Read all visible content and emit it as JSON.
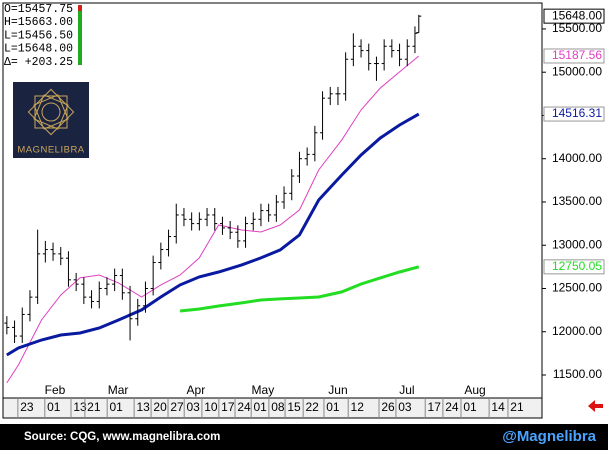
{
  "chart_data": {
    "type": "ohlc",
    "info_lines": [
      "O=15457.75",
      "H=15663.00",
      "L=15456.50",
      "L=15648.00",
      "Δ=  +203.25"
    ],
    "logo_text": "MAGNELIBRA",
    "source": "Source: CQG, www.magnelibra.com",
    "handle": "@Magnelibra",
    "bar_color": "#000000",
    "xlim": [
      0,
      140
    ],
    "ylim": [
      11234,
      15800
    ],
    "yticks": [
      {
        "value": 11500,
        "label": "11500.00"
      },
      {
        "value": 12000,
        "label": "12000.00"
      },
      {
        "value": 12500,
        "label": "12500.00"
      },
      {
        "value": 13000,
        "label": "13000.00"
      },
      {
        "value": 13500,
        "label": "13500.00"
      },
      {
        "value": 14000,
        "label": "14000.00"
      },
      {
        "value": 14500,
        "label": "14500.00"
      },
      {
        "value": 15000,
        "label": "15000.00"
      },
      {
        "value": 15500,
        "label": "15500.00"
      }
    ],
    "xticks": [
      {
        "value": 6.2,
        "label": "23"
      },
      {
        "value": 13.2,
        "label": "01"
      },
      {
        "value": 20,
        "label": "13"
      },
      {
        "value": 23.6,
        "label": "21"
      },
      {
        "value": 29.4,
        "label": "01"
      },
      {
        "value": 36.4,
        "label": "13"
      },
      {
        "value": 40.8,
        "label": "20"
      },
      {
        "value": 45.2,
        "label": "27"
      },
      {
        "value": 49.4,
        "label": "03"
      },
      {
        "value": 54,
        "label": "10"
      },
      {
        "value": 58.4,
        "label": "17"
      },
      {
        "value": 62.6,
        "label": "24"
      },
      {
        "value": 66.8,
        "label": "01"
      },
      {
        "value": 71.4,
        "label": "08"
      },
      {
        "value": 75.6,
        "label": "15"
      },
      {
        "value": 80.3,
        "label": "22"
      },
      {
        "value": 85.7,
        "label": "01"
      },
      {
        "value": 92,
        "label": "12"
      },
      {
        "value": 100,
        "label": "26"
      },
      {
        "value": 104.4,
        "label": "03"
      },
      {
        "value": 112,
        "label": "17"
      },
      {
        "value": 116.6,
        "label": "24"
      },
      {
        "value": 121.3,
        "label": "01"
      },
      {
        "value": 128.6,
        "label": "14"
      },
      {
        "value": 133.5,
        "label": "21"
      }
    ],
    "month_labels": [
      {
        "value": 13.5,
        "label": "Feb"
      },
      {
        "value": 29.9,
        "label": "Mar"
      },
      {
        "value": 50.1,
        "label": "Apr"
      },
      {
        "value": 67.5,
        "label": "May"
      },
      {
        "value": 87,
        "label": "Jun"
      },
      {
        "value": 104.9,
        "label": "Jul"
      },
      {
        "value": 122.6,
        "label": "Aug"
      }
    ],
    "x": [
      1,
      3,
      5,
      7,
      9,
      11,
      13,
      15,
      17,
      19,
      21,
      23,
      25,
      27,
      29,
      31,
      33,
      35,
      37,
      39,
      41,
      43,
      45,
      47,
      49,
      51,
      53,
      55,
      57,
      59,
      61,
      63,
      65,
      67,
      69,
      71,
      73,
      75,
      77,
      79,
      81,
      83,
      85,
      87,
      89,
      91,
      93,
      95,
      97,
      99,
      101,
      103,
      105,
      107,
      108
    ],
    "open": [
      12100,
      12050,
      11950,
      12200,
      12400,
      12900,
      12950,
      12900,
      12850,
      12600,
      12550,
      12400,
      12350,
      12500,
      12550,
      12650,
      12450,
      12150,
      12300,
      12500,
      12800,
      12950,
      13100,
      13350,
      13300,
      13250,
      13300,
      13350,
      13250,
      13200,
      13150,
      13050,
      13250,
      13300,
      13400,
      13350,
      13500,
      13600,
      13800,
      14000,
      14050,
      14300,
      14700,
      14750,
      14750,
      15150,
      15300,
      15250,
      15100,
      15100,
      15300,
      15250,
      15150,
      15300,
      15457.75
    ],
    "high": [
      12180,
      12130,
      12280,
      12480,
      13180,
      13050,
      13030,
      12980,
      12930,
      12680,
      12630,
      12480,
      12580,
      12630,
      12730,
      12730,
      12530,
      12380,
      12580,
      12880,
      13030,
      13180,
      13480,
      13430,
      13380,
      13380,
      13430,
      13430,
      13330,
      13280,
      13230,
      13330,
      13380,
      13480,
      13480,
      13580,
      13680,
      13880,
      14080,
      14130,
      14380,
      14780,
      14830,
      14830,
      15230,
      15450,
      15380,
      15330,
      15180,
      15380,
      15380,
      15330,
      15380,
      15530,
      15663
    ],
    "low": [
      11970,
      11870,
      11870,
      12120,
      12320,
      12800,
      12820,
      12770,
      12520,
      12470,
      12320,
      12270,
      12270,
      12420,
      12470,
      12370,
      11900,
      12070,
      12220,
      12420,
      12720,
      12870,
      13020,
      13220,
      13170,
      13170,
      13220,
      13170,
      13120,
      13070,
      12970,
      12970,
      13170,
      13220,
      13270,
      13270,
      13420,
      13520,
      13720,
      13920,
      13970,
      14220,
      14620,
      14620,
      14670,
      15070,
      15170,
      15020,
      14900,
      15020,
      15170,
      15070,
      15070,
      15220,
      15456.5
    ],
    "close": [
      12050,
      11950,
      12200,
      12400,
      12900,
      12950,
      12900,
      12850,
      12600,
      12550,
      12400,
      12350,
      12500,
      12550,
      12650,
      12450,
      12150,
      12300,
      12500,
      12800,
      12950,
      13100,
      13350,
      13300,
      13250,
      13300,
      13350,
      13250,
      13200,
      13150,
      13050,
      13250,
      13300,
      13400,
      13350,
      13500,
      13600,
      13800,
      14000,
      14050,
      14300,
      14700,
      14750,
      14750,
      15150,
      15300,
      15250,
      15100,
      15100,
      15300,
      15250,
      15150,
      15300,
      15450,
      15648
    ],
    "close_last_label": "15648.00",
    "ma_x": [
      1,
      4,
      10,
      15,
      20,
      25,
      30,
      36,
      41,
      46,
      51,
      56,
      62,
      67,
      72,
      77,
      82,
      88,
      93,
      98,
      103,
      108
    ],
    "lines": [
      {
        "color": "#e040c0",
        "width": 1,
        "values": [
          11408,
          11616,
          12136,
          12425,
          12622,
          12656,
          12564,
          12402,
          12541,
          12656,
          12853,
          13234,
          13176,
          13153,
          13234,
          13408,
          13870,
          14217,
          14564,
          14818,
          15003,
          15187.56
        ],
        "last_label": "15187.56"
      },
      {
        "color": "#0a1aa0",
        "width": 3,
        "values": [
          11731,
          11812,
          11904,
          11962,
          11985,
          12043,
          12136,
          12252,
          12402,
          12541,
          12634,
          12691,
          12772,
          12853,
          12946,
          13119,
          13523,
          13812,
          14043,
          14240,
          14390,
          14516.31
        ],
        "last_label": "14516.31"
      },
      {
        "color": "#22dd22",
        "width": 3,
        "values": [
          null,
          null,
          null,
          null,
          null,
          null,
          null,
          null,
          null,
          12240,
          12263,
          12298,
          12333,
          12367,
          12379,
          12390,
          12402,
          12460,
          12552,
          12622,
          12691,
          12750.05
        ],
        "last_label": "12750.05"
      }
    ]
  }
}
